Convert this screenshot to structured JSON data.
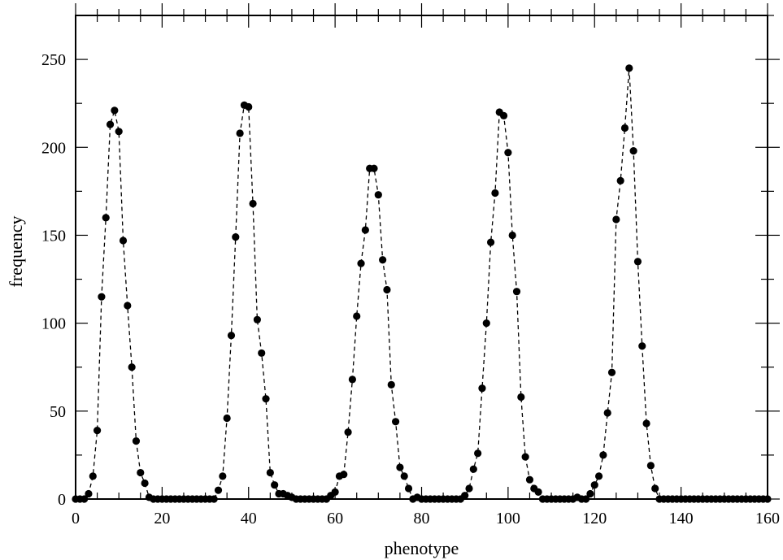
{
  "chart_data": {
    "type": "scatter",
    "title": "",
    "xlabel": "phenotype",
    "ylabel": "frequency",
    "xlim": [
      0,
      160
    ],
    "ylim": [
      0,
      275
    ],
    "x_ticks": [
      {
        "value": 0,
        "label": "0"
      },
      {
        "value": 20,
        "label": "20"
      },
      {
        "value": 40,
        "label": "40"
      },
      {
        "value": 60,
        "label": "60"
      },
      {
        "value": 80,
        "label": "80"
      },
      {
        "value": 100,
        "label": "100"
      },
      {
        "value": 120,
        "label": "120"
      },
      {
        "value": 140,
        "label": "140"
      },
      {
        "value": 160,
        "label": "160"
      }
    ],
    "y_ticks": [
      {
        "value": 0,
        "label": "0"
      },
      {
        "value": 50,
        "label": "50"
      },
      {
        "value": 100,
        "label": "100"
      },
      {
        "value": 150,
        "label": "150"
      },
      {
        "value": 200,
        "label": "200"
      },
      {
        "value": 250,
        "label": "250"
      }
    ],
    "x_minor_step": 5,
    "y_minor_step": 25,
    "grid": false,
    "legend": "none",
    "line_style": "dashed",
    "marker": "filled-circle",
    "colors": {
      "series": "#000000",
      "axes": "#000000",
      "background": "#ffffff"
    },
    "series": [
      {
        "x": [
          0,
          1,
          2,
          3,
          4,
          5,
          6,
          7,
          8,
          9,
          10,
          11,
          12,
          13,
          14,
          15,
          16,
          17,
          18,
          19,
          20,
          21,
          22,
          23,
          24,
          25,
          26,
          27,
          28,
          29,
          30,
          31,
          32,
          33,
          34,
          35,
          36,
          37,
          38,
          39,
          40,
          41,
          42,
          43,
          44,
          45,
          46,
          47,
          48,
          49,
          50,
          51,
          52,
          53,
          54,
          55,
          56,
          57,
          58,
          59,
          60,
          61,
          62,
          63,
          64,
          65,
          66,
          67,
          68,
          69,
          70,
          71,
          72,
          73,
          74,
          75,
          76,
          77,
          78,
          79,
          80,
          81,
          82,
          83,
          84,
          85,
          86,
          87,
          88,
          89,
          90,
          91,
          92,
          93,
          94,
          95,
          96,
          97,
          98,
          99,
          100,
          101,
          102,
          103,
          104,
          105,
          106,
          107,
          108,
          109,
          110,
          111,
          112,
          113,
          114,
          115,
          116,
          117,
          118,
          119,
          120,
          121,
          122,
          123,
          124,
          125,
          126,
          127,
          128,
          129,
          130,
          131,
          132,
          133,
          134,
          135,
          136,
          137,
          138,
          139,
          140,
          141,
          142,
          143,
          144,
          145,
          146,
          147,
          148,
          149,
          150,
          151,
          152,
          153,
          154,
          155,
          156,
          157,
          158,
          159,
          160
        ],
        "y": [
          0,
          0,
          0,
          3,
          13,
          39,
          115,
          160,
          213,
          221,
          209,
          147,
          110,
          75,
          33,
          15,
          9,
          1,
          0,
          0,
          0,
          0,
          0,
          0,
          0,
          0,
          0,
          0,
          0,
          0,
          0,
          0,
          0,
          5,
          13,
          46,
          93,
          149,
          208,
          224,
          223,
          168,
          102,
          83,
          57,
          15,
          8,
          3,
          3,
          2,
          1,
          0,
          0,
          0,
          0,
          0,
          0,
          0,
          0,
          2,
          4,
          13,
          14,
          38,
          68,
          104,
          134,
          153,
          188,
          188,
          173,
          136,
          119,
          65,
          44,
          18,
          13,
          6,
          0,
          1,
          0,
          0,
          0,
          0,
          0,
          0,
          0,
          0,
          0,
          0,
          2,
          6,
          17,
          26,
          63,
          100,
          146,
          174,
          220,
          218,
          197,
          150,
          118,
          58,
          24,
          11,
          6,
          4,
          0,
          0,
          0,
          0,
          0,
          0,
          0,
          0,
          1,
          0,
          0,
          3,
          8,
          13,
          25,
          49,
          72,
          159,
          181,
          211,
          245,
          198,
          135,
          87,
          43,
          19,
          6,
          0,
          0,
          0,
          0,
          0,
          0,
          0,
          0,
          0,
          0,
          0,
          0,
          0,
          0,
          0,
          0,
          0,
          0,
          0,
          0,
          0,
          0,
          0,
          0,
          0,
          0
        ]
      }
    ]
  }
}
